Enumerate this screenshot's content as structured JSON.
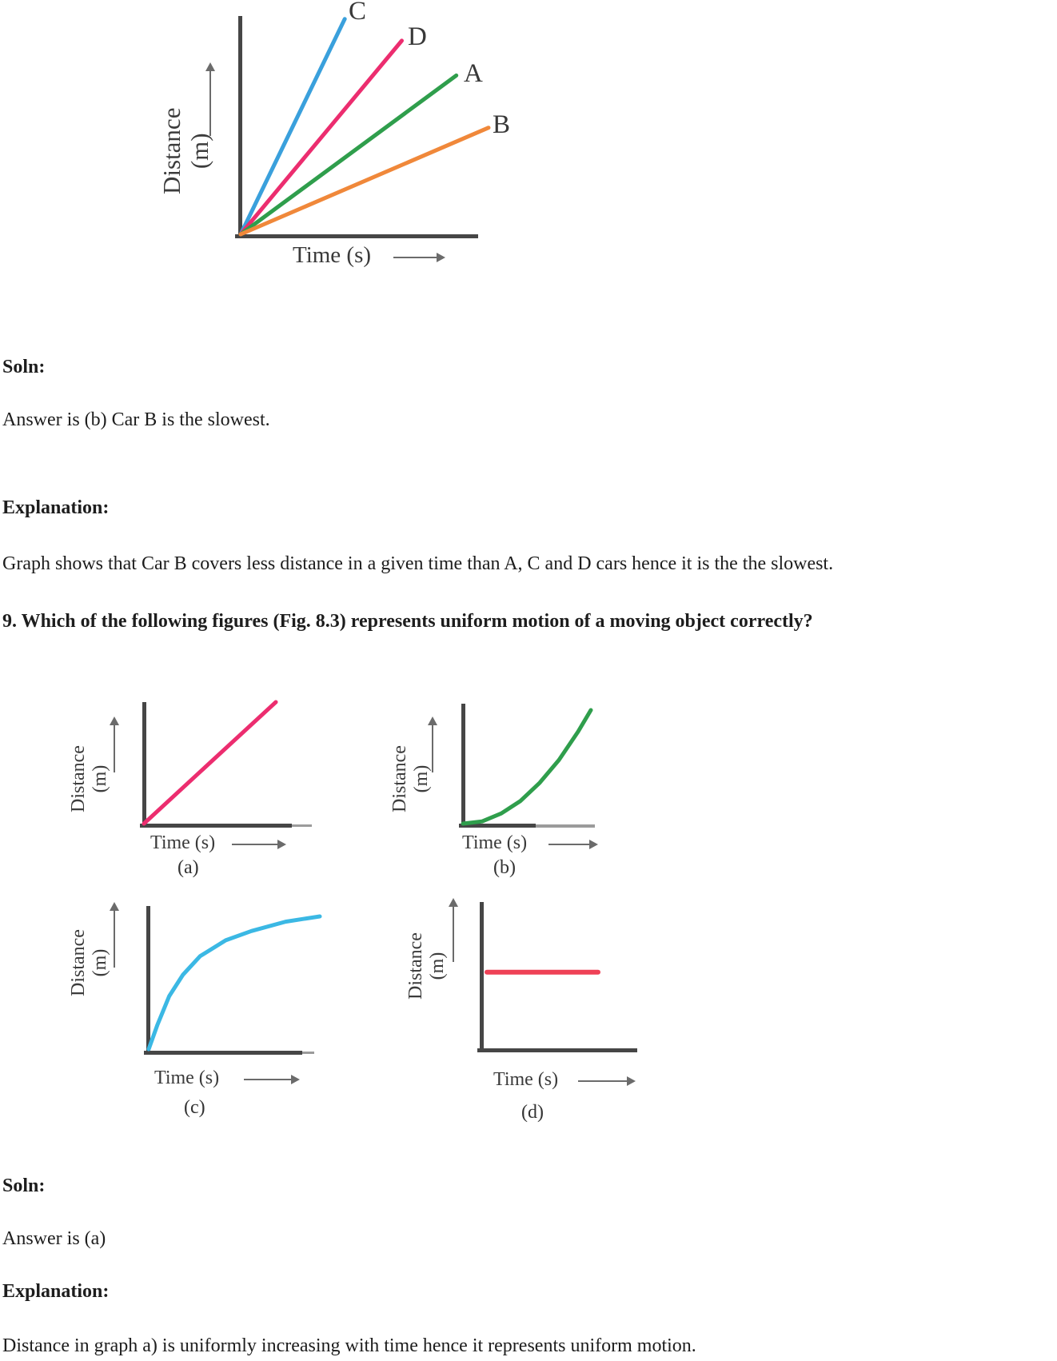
{
  "document": {
    "background": "#ffffff",
    "sections": {
      "soln1_heading": "Soln:",
      "answer1": "Answer is (b) Car B is the slowest.",
      "explanation1_heading": "Explanation:",
      "explanation1_body": "Graph shows that Car B covers less distance in a given time than A, C and D cars hence it is the the slowest.",
      "question9": "9. Which of the following figures (Fig. 8.3) represents uniform motion of a moving object correctly?",
      "soln2_heading": "Soln:",
      "answer2": "Answer is (a)",
      "explanation2_heading": "Explanation:",
      "explanation2_body": "Distance in graph a) is uniformly increasing with time hence it represents uniform motion."
    }
  },
  "figure_labels": {
    "ylabel_top": "Distance",
    "ylabel_bottom": "(m)",
    "xlabel": "Time (s)"
  },
  "chart_data": {
    "fig_8_2": {
      "type": "line",
      "title": "Distance-time graph of four cars A, B, C, D",
      "xlabel": "Time (s)",
      "ylabel": "Distance (m)",
      "axes_numeric": false,
      "grid": false,
      "description": "Four straight lines from the origin; steeper slope means faster car. Slope order: C > D > A > B, so car B is the slowest.",
      "series": [
        {
          "name": "C",
          "color": "#3aa0dc",
          "points": [
            [
              0,
              0
            ],
            [
              0.42,
              0.99
            ]
          ]
        },
        {
          "name": "D",
          "color": "#ec2d6f",
          "points": [
            [
              0,
              0
            ],
            [
              0.65,
              0.89
            ]
          ]
        },
        {
          "name": "A",
          "color": "#2f9e4c",
          "points": [
            [
              0,
              0
            ],
            [
              0.87,
              0.73
            ]
          ]
        },
        {
          "name": "B",
          "color": "#f0883a",
          "points": [
            [
              0,
              0
            ],
            [
              1.0,
              0.49
            ]
          ]
        }
      ]
    },
    "fig_8_3_a": {
      "type": "line",
      "caption": "(a)",
      "xlabel": "Time (s)",
      "ylabel": "Distance (m)",
      "axes_numeric": false,
      "description": "Straight line through the origin - distance uniformly increasing with time (uniform motion).",
      "series": [
        {
          "name": "a",
          "color": "#ec2d6f",
          "points": [
            [
              0,
              0
            ],
            [
              1,
              1
            ]
          ]
        }
      ]
    },
    "fig_8_3_b": {
      "type": "line",
      "caption": "(b)",
      "xlabel": "Time (s)",
      "ylabel": "Distance (m)",
      "axes_numeric": false,
      "description": "Concave-up curve from the origin - distance increasing faster and faster (accelerating motion).",
      "series": [
        {
          "name": "b",
          "color": "#2f9e4c",
          "points": [
            [
              0,
              0
            ],
            [
              0.15,
              0.02
            ],
            [
              0.3,
              0.09
            ],
            [
              0.45,
              0.2
            ],
            [
              0.6,
              0.36
            ],
            [
              0.75,
              0.56
            ],
            [
              0.9,
              0.81
            ],
            [
              1,
              1
            ]
          ]
        }
      ]
    },
    "fig_8_3_c": {
      "type": "line",
      "caption": "(c)",
      "xlabel": "Time (s)",
      "ylabel": "Distance (m)",
      "axes_numeric": false,
      "description": "Concave-down saturating curve - rapid rise then levelling off (decelerating motion).",
      "series": [
        {
          "name": "c",
          "color": "#3bb8e4",
          "points": [
            [
              0,
              0
            ],
            [
              0.05,
              0.18
            ],
            [
              0.12,
              0.4
            ],
            [
              0.2,
              0.56
            ],
            [
              0.3,
              0.7
            ],
            [
              0.45,
              0.82
            ],
            [
              0.6,
              0.89
            ],
            [
              0.8,
              0.96
            ],
            [
              1,
              1
            ]
          ]
        }
      ]
    },
    "fig_8_3_d": {
      "type": "line",
      "caption": "(d)",
      "xlabel": "Time (s)",
      "ylabel": "Distance (m)",
      "axes_numeric": false,
      "description": "Horizontal line at constant distance - object not moving.",
      "series": [
        {
          "name": "d",
          "color": "#ef4156",
          "points": [
            [
              0.03,
              0.52
            ],
            [
              0.725,
              0.52
            ]
          ]
        }
      ]
    }
  }
}
